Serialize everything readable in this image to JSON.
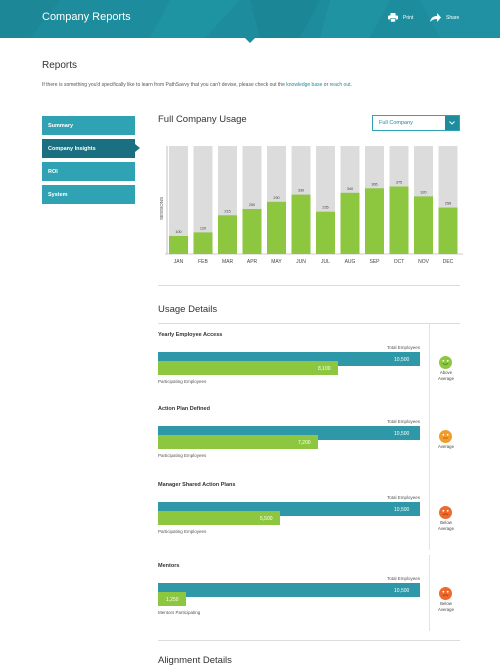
{
  "header": {
    "title": "Company Reports",
    "print_label": "Print",
    "share_label": "Share"
  },
  "reports": {
    "title": "Reports",
    "desc_pre": "If there is something you'd specifically like to learn from PathSavvy that you can't devise, please check out the ",
    "link1": "knowledge base",
    "desc_mid": " or ",
    "link2": "reach out",
    "desc_post": "."
  },
  "sidebar": {
    "items": [
      {
        "label": "Summary"
      },
      {
        "label": "Company Insights"
      },
      {
        "label": "ROI"
      },
      {
        "label": "System"
      }
    ],
    "active_index": 1
  },
  "usage_section": {
    "title": "Full Company Usage",
    "dropdown_value": "Full Company"
  },
  "chart_data": {
    "type": "bar",
    "title": "Full Company Usage",
    "ylabel": "SESSIONS",
    "xlabel": "",
    "categories": [
      "JAN",
      "FEB",
      "MAR",
      "APR",
      "MAY",
      "JUN",
      "JUL",
      "AUG",
      "SEP",
      "OCT",
      "NOV",
      "DEC"
    ],
    "values": [
      100,
      120,
      215,
      250,
      290,
      330,
      235,
      340,
      365,
      375,
      320,
      258
    ],
    "ylim": [
      0,
      600
    ],
    "colors": {
      "bar": "#8dc63f",
      "track": "#dcdcdc"
    }
  },
  "usage_details": {
    "title": "Usage Details",
    "metrics": [
      {
        "title": "Yearly Employee Access",
        "total_label": "Total Employees",
        "total": 10500,
        "total_text": "10,500",
        "part": 8100,
        "part_text": "8,100",
        "sub_label": "Participating Employees",
        "status": "Above Average",
        "status_line1": "Above",
        "status_line2": "Average",
        "face": "happy-face-icon",
        "face_color": "#8dc63f"
      },
      {
        "title": "Action Plan Defined",
        "total_label": "Total Employees",
        "total": 10500,
        "total_text": "10,500",
        "part": 7200,
        "part_text": "7,200",
        "sub_label": "Participating Employees",
        "status": "Average",
        "status_line1": "Average",
        "status_line2": "",
        "face": "neutral-face-icon",
        "face_color": "#f39c2a"
      },
      {
        "title": "Manager Shared Action Plans",
        "total_label": "Total Employees",
        "total": 10500,
        "total_text": "10,500",
        "part": 5500,
        "part_text": "5,500",
        "sub_label": "Participating Employees",
        "status": "Below Average",
        "status_line1": "Below",
        "status_line2": "Average",
        "face": "sad-face-icon",
        "face_color": "#ee6a2c"
      },
      {
        "title": "Mentors",
        "total_label": "Total Employees",
        "total": 10500,
        "total_text": "10,500",
        "part": 1250,
        "part_text": "1,250",
        "sub_label": "Mentors Participating",
        "status": "Below Average",
        "status_line1": "Below",
        "status_line2": "Average",
        "face": "sad-face-icon",
        "face_color": "#ee6a2c"
      }
    ]
  },
  "alignment": {
    "title": "Alignment Details"
  }
}
